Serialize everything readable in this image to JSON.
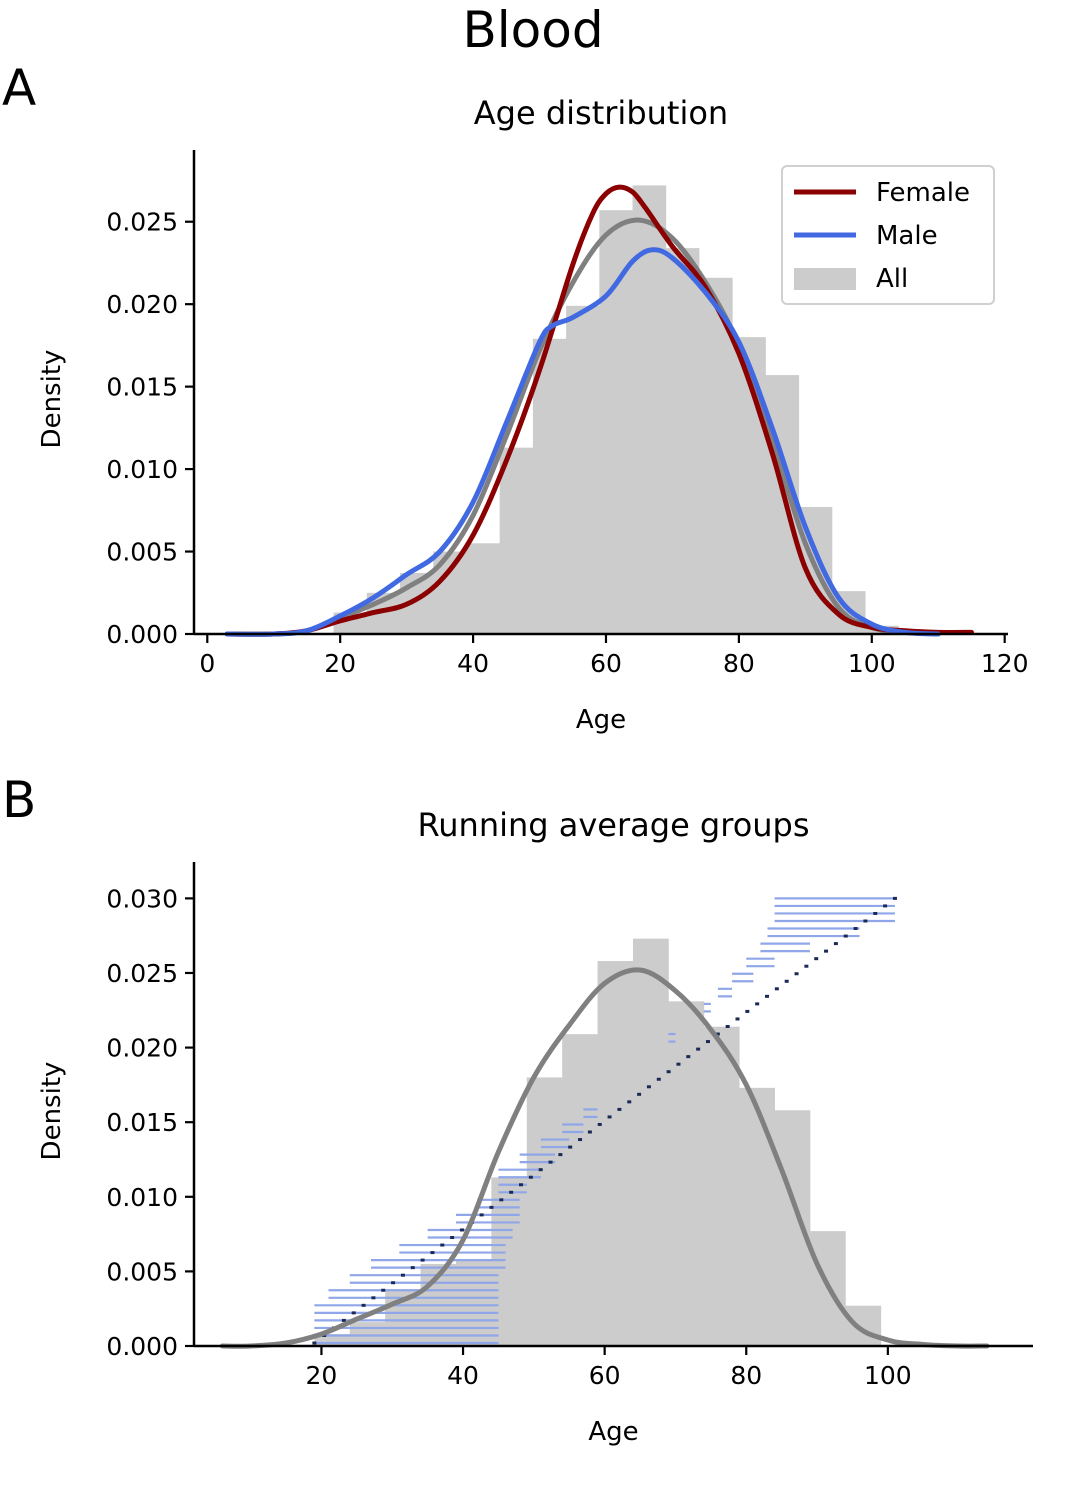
{
  "figure": {
    "title": "Blood"
  },
  "colors": {
    "female": "#8b0000",
    "male": "#4169e1",
    "all_kde": "#808080",
    "hist": "#cccccc",
    "group_bar": "#8fa6e8",
    "group_center": "#1a2a55"
  },
  "chart_data": [
    {
      "panel_label": "A",
      "type": "bar",
      "title": "Age distribution",
      "xlabel": "Age",
      "ylabel": "Density",
      "xlim": [
        -2,
        120.5
      ],
      "ylim": [
        0,
        0.0285
      ],
      "xticks": [
        0,
        20,
        40,
        60,
        80,
        100,
        120
      ],
      "yticks": [
        0.0,
        0.005,
        0.01,
        0.015,
        0.02,
        0.025
      ],
      "ytick_labels": [
        "0.000",
        "0.005",
        "0.010",
        "0.015",
        "0.020",
        "0.025"
      ],
      "grid": false,
      "legend": {
        "placement": "top-right",
        "entries": [
          "Female",
          "Male",
          "All"
        ]
      },
      "histogram": {
        "name": "All",
        "bin_edges": [
          19,
          24,
          29,
          34,
          39,
          44,
          49,
          54,
          59,
          64,
          69,
          74,
          79,
          84,
          89,
          94,
          99,
          104
        ],
        "values": [
          0.0013,
          0.0025,
          0.0037,
          0.005,
          0.0055,
          0.0113,
          0.0179,
          0.0199,
          0.0257,
          0.0272,
          0.0234,
          0.0216,
          0.018,
          0.0157,
          0.0077,
          0.0026,
          0.0005
        ]
      },
      "series": [
        {
          "name": "Female",
          "x": [
            3,
            10,
            15,
            20,
            25,
            30,
            35,
            40,
            45,
            50,
            55,
            58,
            60,
            62,
            64,
            66,
            70,
            75,
            80,
            85,
            90,
            95,
            100,
            105,
            110,
            115
          ],
          "y": [
            0.0,
            0.0,
            0.0002,
            0.0008,
            0.0013,
            0.0018,
            0.0032,
            0.006,
            0.0105,
            0.016,
            0.0224,
            0.0255,
            0.0267,
            0.0271,
            0.0268,
            0.0258,
            0.0235,
            0.021,
            0.017,
            0.011,
            0.004,
            0.0012,
            0.0004,
            0.0002,
            0.0001,
            0.0001
          ]
        },
        {
          "name": "Male",
          "x": [
            3,
            10,
            15,
            20,
            25,
            30,
            35,
            40,
            45,
            50,
            52,
            55,
            60,
            64,
            67,
            70,
            75,
            80,
            85,
            90,
            95,
            100,
            105,
            110
          ],
          "y": [
            0.0,
            0.0,
            0.0002,
            0.0011,
            0.0022,
            0.0036,
            0.005,
            0.008,
            0.0128,
            0.0177,
            0.0187,
            0.0192,
            0.0205,
            0.0226,
            0.0233,
            0.0228,
            0.0207,
            0.0177,
            0.0125,
            0.0065,
            0.0022,
            0.0006,
            0.0001,
            0.0
          ]
        },
        {
          "name": "All",
          "x": [
            3,
            10,
            15,
            20,
            25,
            30,
            35,
            40,
            45,
            50,
            55,
            60,
            65,
            70,
            75,
            80,
            85,
            90,
            95,
            100,
            105,
            110
          ],
          "y": [
            0.0,
            0.0,
            0.0002,
            0.001,
            0.0018,
            0.0028,
            0.0042,
            0.0072,
            0.012,
            0.0172,
            0.0213,
            0.0242,
            0.0251,
            0.024,
            0.0213,
            0.0175,
            0.0118,
            0.0055,
            0.0016,
            0.0004,
            0.0001,
            0.0
          ]
        }
      ]
    },
    {
      "panel_label": "B",
      "type": "bar",
      "title": "Running average groups",
      "xlabel": "Age",
      "ylabel": "Density",
      "xlim": [
        2,
        120.5
      ],
      "ylim": [
        0,
        0.0315
      ],
      "xticks": [
        20,
        40,
        60,
        80,
        100
      ],
      "yticks": [
        0.0,
        0.005,
        0.01,
        0.015,
        0.02,
        0.025,
        0.03
      ],
      "ytick_labels": [
        "0.000",
        "0.005",
        "0.010",
        "0.015",
        "0.020",
        "0.025",
        "0.030"
      ],
      "grid": false,
      "histogram": {
        "name": "All",
        "bin_edges": [
          19,
          24,
          29,
          34,
          39,
          44,
          49,
          54,
          59,
          64,
          69,
          74,
          79,
          84,
          89,
          94,
          99
        ],
        "values": [
          0.0008,
          0.0016,
          0.0038,
          0.0055,
          0.0057,
          0.0113,
          0.018,
          0.0209,
          0.0258,
          0.0273,
          0.0231,
          0.0214,
          0.0173,
          0.0158,
          0.0077,
          0.0027
        ]
      },
      "series": [
        {
          "name": "All",
          "x": [
            6,
            10,
            15,
            20,
            25,
            30,
            35,
            40,
            45,
            50,
            55,
            60,
            65,
            70,
            75,
            80,
            85,
            90,
            95,
            100,
            105,
            110,
            114
          ],
          "y": [
            0.0,
            0.0,
            0.0002,
            0.0008,
            0.0018,
            0.0028,
            0.004,
            0.0071,
            0.013,
            0.018,
            0.0215,
            0.0243,
            0.0252,
            0.0238,
            0.0212,
            0.0175,
            0.0118,
            0.0055,
            0.0016,
            0.0004,
            0.0001,
            0.0,
            0.0
          ]
        }
      ],
      "running_groups": {
        "count": 60,
        "y_start": 0.0002,
        "y_end": 0.03,
        "center_start": 19.0,
        "center_end": 101.0,
        "left_edges": [
          19,
          19,
          19,
          21,
          24,
          27,
          31,
          35,
          39,
          42,
          45,
          45,
          48,
          51,
          54,
          57,
          61,
          63,
          65,
          67,
          70,
          72,
          74,
          76,
          78,
          80,
          82,
          83,
          84,
          84
        ],
        "right_edges": [
          45,
          45,
          45,
          45,
          45,
          46,
          46,
          47,
          48,
          48,
          49,
          51,
          53,
          55,
          57,
          59,
          61,
          63,
          65,
          67,
          69,
          72,
          75,
          78,
          81,
          84,
          89,
          96,
          101,
          101
        ]
      }
    }
  ]
}
